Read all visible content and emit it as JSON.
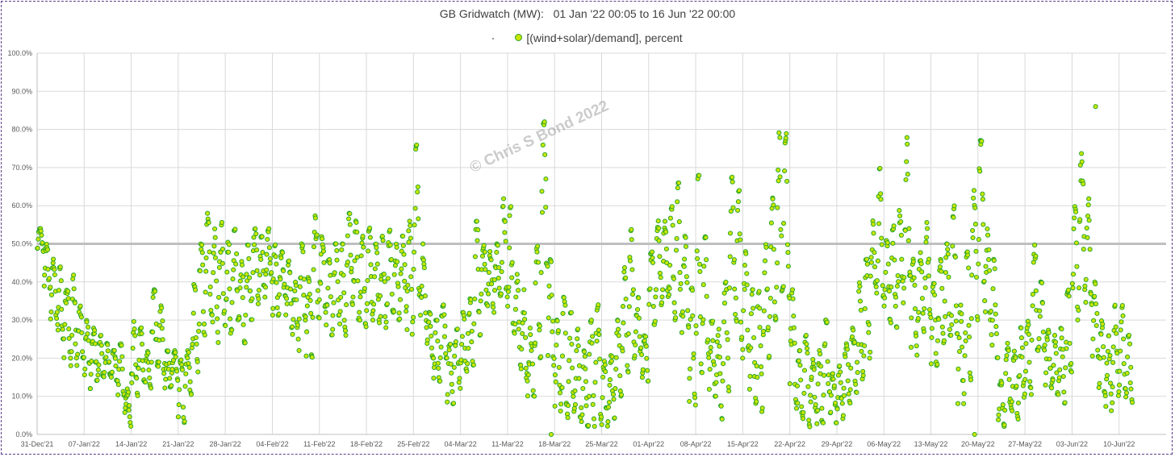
{
  "chart_data": {
    "type": "scatter",
    "title": "GB Gridwatch (MW):   01 Jan '22 00:05 to 16 Jun '22 00:00",
    "xlabel": "",
    "ylabel": "",
    "ylim": [
      0,
      100
    ],
    "y_ticks": [
      "0.0%",
      "10.0%",
      "20.0%",
      "30.0%",
      "40.0%",
      "50.0%",
      "60.0%",
      "70.0%",
      "80.0%",
      "90.0%",
      "100.0%"
    ],
    "x_ticks": [
      "31-Dec'21",
      "07-Jan'22",
      "14-Jan'22",
      "21-Jan'22",
      "28-Jan'22",
      "04-Feb'22",
      "11-Feb'22",
      "18-Feb'22",
      "25-Feb'22",
      "04-Mar'22",
      "11-Mar'22",
      "18-Mar'22",
      "25-Mar'22",
      "01-Apr'22",
      "08-Apr'22",
      "15-Apr'22",
      "22-Apr'22",
      "29-Apr'22",
      "06-May'22",
      "13-May'22",
      "20-May'22",
      "27-May'22",
      "03-Jun'22",
      "10-Jun'22"
    ],
    "x_tick_day_offsets": [
      0,
      7,
      14,
      21,
      28,
      35,
      42,
      49,
      56,
      63,
      70,
      77,
      84,
      91,
      98,
      105,
      112,
      119,
      126,
      133,
      140,
      147,
      154,
      161
    ],
    "x_range_days": [
      0,
      168
    ],
    "grid": true,
    "legend_position": "top-center",
    "reference_line": {
      "y": 50,
      "color": "#bfbfbf"
    },
    "series": [
      {
        "name": "[(wind+solar)/demand], percent",
        "fill": "#c8e600",
        "stroke": "#22a02a",
        "daily_profile": [
          [
            1,
            48,
            54
          ],
          [
            2,
            38,
            50
          ],
          [
            3,
            30,
            46
          ],
          [
            4,
            25,
            44
          ],
          [
            5,
            20,
            40
          ],
          [
            6,
            18,
            42
          ],
          [
            7,
            20,
            34
          ],
          [
            8,
            12,
            30
          ],
          [
            9,
            14,
            28
          ],
          [
            10,
            15,
            26
          ],
          [
            11,
            15,
            24
          ],
          [
            12,
            14,
            22
          ],
          [
            13,
            10,
            24
          ],
          [
            14,
            2,
            12
          ],
          [
            15,
            10,
            30
          ],
          [
            16,
            14,
            28
          ],
          [
            17,
            12,
            22
          ],
          [
            18,
            18,
            38
          ],
          [
            19,
            16,
            34
          ],
          [
            20,
            12,
            22
          ],
          [
            21,
            14,
            22
          ],
          [
            22,
            3,
            20
          ],
          [
            23,
            10,
            22
          ],
          [
            24,
            16,
            40
          ],
          [
            25,
            26,
            50
          ],
          [
            26,
            30,
            58
          ],
          [
            27,
            24,
            54
          ],
          [
            28,
            28,
            56
          ],
          [
            29,
            26,
            52
          ],
          [
            30,
            30,
            54
          ],
          [
            31,
            24,
            46
          ],
          [
            32,
            30,
            50
          ],
          [
            33,
            34,
            54
          ],
          [
            34,
            36,
            52
          ],
          [
            35,
            40,
            54
          ],
          [
            36,
            30,
            50
          ],
          [
            37,
            36,
            48
          ],
          [
            38,
            28,
            46
          ],
          [
            39,
            22,
            40
          ],
          [
            40,
            30,
            50
          ],
          [
            41,
            20,
            42
          ],
          [
            42,
            30,
            58
          ],
          [
            43,
            32,
            52
          ],
          [
            44,
            26,
            46
          ],
          [
            45,
            30,
            50
          ],
          [
            46,
            26,
            50
          ],
          [
            47,
            34,
            58
          ],
          [
            48,
            30,
            56
          ],
          [
            49,
            28,
            52
          ],
          [
            50,
            30,
            56
          ],
          [
            51,
            28,
            50
          ],
          [
            52,
            28,
            52
          ],
          [
            53,
            32,
            54
          ],
          [
            54,
            30,
            50
          ],
          [
            55,
            32,
            52
          ],
          [
            56,
            26,
            56
          ],
          [
            57,
            36,
            76
          ],
          [
            58,
            28,
            50
          ],
          [
            59,
            20,
            32
          ],
          [
            60,
            14,
            30
          ],
          [
            61,
            20,
            34
          ],
          [
            62,
            8,
            24
          ],
          [
            63,
            12,
            28
          ],
          [
            64,
            16,
            32
          ],
          [
            65,
            18,
            36
          ],
          [
            66,
            26,
            56
          ],
          [
            67,
            34,
            50
          ],
          [
            68,
            32,
            48
          ],
          [
            69,
            36,
            50
          ],
          [
            70,
            36,
            62
          ],
          [
            71,
            26,
            60
          ],
          [
            72,
            18,
            42
          ],
          [
            73,
            14,
            38
          ],
          [
            74,
            10,
            28
          ],
          [
            75,
            20,
            50
          ],
          [
            76,
            40,
            82
          ],
          [
            77,
            18,
            46
          ],
          [
            78,
            6,
            30
          ],
          [
            79,
            4,
            36
          ],
          [
            80,
            6,
            32
          ],
          [
            81,
            4,
            28
          ],
          [
            82,
            2,
            22
          ],
          [
            83,
            2,
            30
          ],
          [
            84,
            4,
            34
          ],
          [
            85,
            2,
            20
          ],
          [
            86,
            4,
            22
          ],
          [
            87,
            10,
            30
          ],
          [
            88,
            16,
            44
          ],
          [
            89,
            20,
            54
          ],
          [
            90,
            20,
            36
          ],
          [
            91,
            14,
            26
          ],
          [
            92,
            28,
            48
          ],
          [
            93,
            34,
            56
          ],
          [
            94,
            36,
            56
          ],
          [
            95,
            30,
            60
          ],
          [
            96,
            26,
            66
          ],
          [
            97,
            28,
            52
          ],
          [
            98,
            6,
            40
          ],
          [
            99,
            16,
            68
          ],
          [
            100,
            20,
            52
          ],
          [
            101,
            10,
            30
          ],
          [
            102,
            4,
            30
          ],
          [
            103,
            10,
            40
          ],
          [
            104,
            30,
            68
          ],
          [
            105,
            20,
            64
          ],
          [
            106,
            22,
            48
          ],
          [
            107,
            8,
            38
          ],
          [
            108,
            6,
            38
          ],
          [
            109,
            20,
            50
          ],
          [
            110,
            30,
            62
          ],
          [
            111,
            36,
            80
          ],
          [
            112,
            34,
            80
          ],
          [
            113,
            8,
            38
          ],
          [
            114,
            4,
            22
          ],
          [
            115,
            2,
            26
          ],
          [
            116,
            6,
            20
          ],
          [
            117,
            2,
            22
          ],
          [
            118,
            10,
            30
          ],
          [
            119,
            3,
            16
          ],
          [
            120,
            4,
            18
          ],
          [
            121,
            8,
            24
          ],
          [
            122,
            10,
            28
          ],
          [
            123,
            14,
            40
          ],
          [
            124,
            20,
            46
          ],
          [
            125,
            36,
            56
          ],
          [
            126,
            36,
            70
          ],
          [
            127,
            30,
            52
          ],
          [
            128,
            28,
            56
          ],
          [
            129,
            34,
            60
          ],
          [
            130,
            40,
            78
          ],
          [
            131,
            20,
            46
          ],
          [
            132,
            26,
            48
          ],
          [
            133,
            30,
            56
          ],
          [
            134,
            18,
            40
          ],
          [
            135,
            24,
            46
          ],
          [
            136,
            26,
            50
          ],
          [
            137,
            26,
            60
          ],
          [
            138,
            8,
            34
          ],
          [
            139,
            14,
            48
          ],
          [
            140,
            30,
            64
          ],
          [
            141,
            40,
            78
          ],
          [
            142,
            30,
            54
          ],
          [
            143,
            20,
            46
          ],
          [
            144,
            2,
            14
          ],
          [
            145,
            6,
            24
          ],
          [
            146,
            4,
            22
          ],
          [
            147,
            8,
            28
          ],
          [
            148,
            10,
            30
          ],
          [
            149,
            22,
            50
          ],
          [
            150,
            22,
            40
          ],
          [
            151,
            12,
            28
          ],
          [
            152,
            10,
            26
          ],
          [
            153,
            8,
            28
          ],
          [
            154,
            16,
            38
          ],
          [
            155,
            30,
            60
          ],
          [
            156,
            38,
            74
          ],
          [
            157,
            34,
            62
          ],
          [
            158,
            20,
            40
          ],
          [
            159,
            10,
            30
          ],
          [
            160,
            6,
            26
          ],
          [
            161,
            8,
            34
          ],
          [
            162,
            12,
            34
          ],
          [
            163,
            8,
            26
          ]
        ],
        "outliers": [
          [
            76.5,
            0
          ],
          [
            139.5,
            0
          ],
          [
            157.5,
            86
          ]
        ]
      }
    ]
  },
  "watermark": "© Chris S Bond 2022"
}
